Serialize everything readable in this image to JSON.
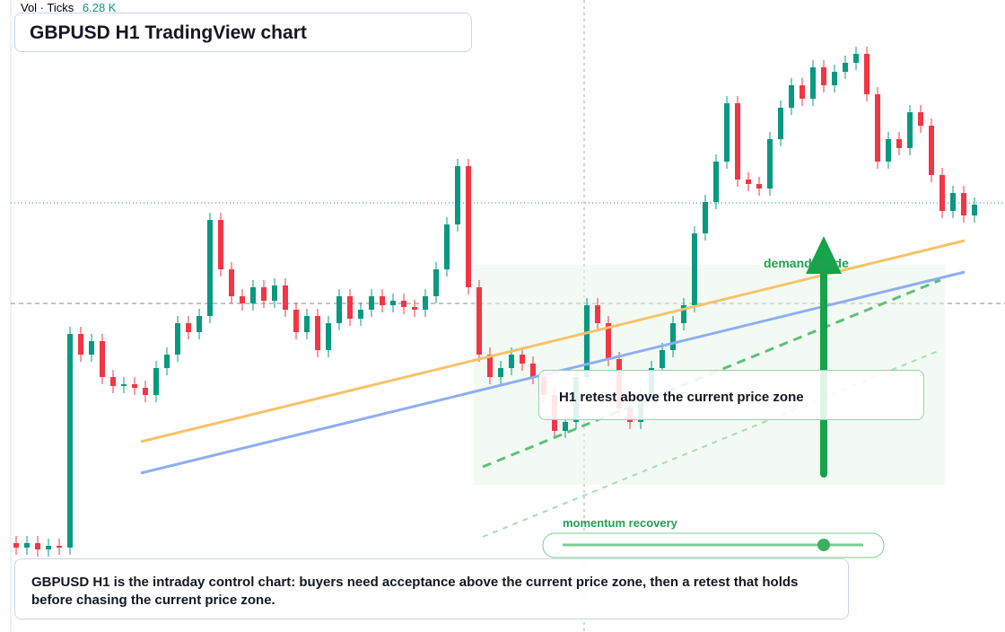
{
  "header": {
    "indicator": "Vol · Ticks",
    "indicator_value": "6.28 K",
    "title": "GBPUSD H1 TradingView chart"
  },
  "chart": {
    "type": "candlestick",
    "ylim": [
      0,
      700
    ],
    "open": [
      95,
      90,
      95,
      88,
      92,
      90,
      328,
      305,
      320,
      280,
      270,
      272,
      268,
      260,
      290,
      305,
      340,
      330,
      348,
      455,
      400,
      370,
      362,
      380,
      365,
      382,
      355,
      330,
      348,
      310,
      340,
      370,
      345,
      355,
      370,
      360,
      365,
      358,
      355,
      370,
      400,
      450,
      515,
      380,
      305,
      280,
      290,
      305,
      295,
      280,
      260,
      220,
      230,
      280,
      360,
      340,
      300,
      245,
      230,
      260,
      290,
      310,
      340,
      360,
      440,
      475,
      520,
      585,
      500,
      495,
      490,
      545,
      580,
      605,
      590,
      625,
      605,
      620,
      630,
      640,
      595,
      520,
      545,
      535,
      575,
      560,
      505,
      465,
      485,
      460
    ],
    "high": [
      103,
      103,
      103,
      100,
      100,
      336,
      336,
      328,
      328,
      288,
      280,
      280,
      276,
      298,
      313,
      348,
      348,
      356,
      463,
      463,
      408,
      378,
      388,
      388,
      390,
      390,
      363,
      356,
      356,
      348,
      378,
      378,
      363,
      378,
      378,
      373,
      373,
      366,
      378,
      408,
      458,
      523,
      523,
      388,
      313,
      298,
      313,
      313,
      303,
      288,
      268,
      238,
      288,
      368,
      368,
      348,
      308,
      253,
      268,
      298,
      318,
      348,
      368,
      448,
      483,
      528,
      593,
      593,
      508,
      503,
      553,
      588,
      613,
      613,
      633,
      633,
      628,
      638,
      648,
      648,
      603,
      553,
      553,
      583,
      583,
      568,
      513,
      493,
      493,
      480
    ],
    "low": [
      82,
      82,
      80,
      80,
      82,
      82,
      297,
      297,
      272,
      262,
      262,
      260,
      252,
      252,
      282,
      297,
      322,
      322,
      340,
      392,
      362,
      354,
      354,
      357,
      357,
      347,
      322,
      322,
      302,
      302,
      332,
      337,
      337,
      347,
      352,
      352,
      350,
      347,
      347,
      362,
      392,
      442,
      372,
      297,
      272,
      272,
      282,
      287,
      272,
      252,
      212,
      212,
      222,
      272,
      332,
      292,
      237,
      222,
      222,
      252,
      282,
      302,
      332,
      352,
      432,
      467,
      512,
      492,
      487,
      482,
      482,
      537,
      572,
      582,
      582,
      597,
      597,
      612,
      622,
      587,
      512,
      512,
      527,
      527,
      552,
      497,
      457,
      457,
      452,
      452
    ],
    "close": [
      90,
      95,
      88,
      92,
      90,
      328,
      305,
      320,
      280,
      270,
      272,
      268,
      260,
      290,
      305,
      340,
      330,
      348,
      455,
      400,
      370,
      362,
      380,
      365,
      382,
      355,
      330,
      348,
      310,
      340,
      370,
      345,
      355,
      370,
      360,
      365,
      358,
      355,
      370,
      400,
      450,
      515,
      380,
      305,
      280,
      290,
      305,
      295,
      280,
      260,
      220,
      230,
      280,
      360,
      340,
      300,
      245,
      230,
      260,
      290,
      310,
      340,
      360,
      440,
      475,
      520,
      585,
      500,
      495,
      490,
      545,
      580,
      605,
      590,
      625,
      605,
      620,
      630,
      640,
      595,
      520,
      545,
      535,
      575,
      560,
      505,
      465,
      485,
      460,
      472
    ],
    "up_color": "#089981",
    "down_color": "#f23645"
  },
  "annotations": {
    "demand": "demand guide",
    "retest": "H1 retest above the current price zone",
    "momentum": "momentum recovery"
  },
  "note": "GBPUSD H1 is the intraday control chart: buyers need acceptance above the current price zone, then a retest that holds before chasing the current price zone."
}
